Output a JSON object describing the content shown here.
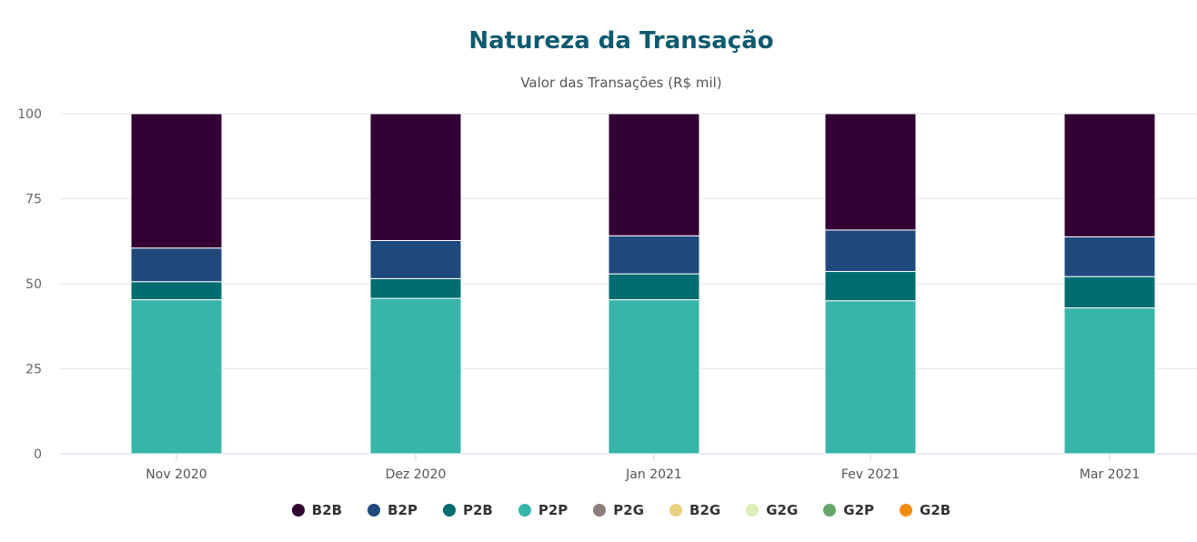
{
  "chart_data": {
    "type": "bar",
    "stacked": true,
    "title": "Natureza da Transação",
    "subtitle": "Valor das Transações (R$ mil)",
    "categories": [
      "Nov 2020",
      "Dez 2020",
      "Jan 2021",
      "Fev 2021",
      "Mar 2021"
    ],
    "ylim": [
      0,
      100
    ],
    "yticks": [
      "0",
      "25",
      "50",
      "75",
      "100"
    ],
    "grid": true,
    "legend_position": "bottom",
    "series": [
      {
        "name": "P2P",
        "color": "#38b5aa",
        "values": [
          45.3,
          45.7,
          45.3,
          45.0,
          42.9
        ]
      },
      {
        "name": "P2B",
        "color": "#026d70",
        "values": [
          5.3,
          5.8,
          7.6,
          8.6,
          9.2
        ]
      },
      {
        "name": "B2P",
        "color": "#1f497d",
        "values": [
          9.9,
          11.2,
          11.2,
          12.2,
          11.7
        ]
      },
      {
        "name": "B2B",
        "color": "#320033",
        "values": [
          39.5,
          37.3,
          35.9,
          34.2,
          36.2
        ]
      },
      {
        "name": "P2G",
        "color": "#8b7e7b",
        "values": [
          0,
          0,
          0,
          0,
          0
        ]
      },
      {
        "name": "B2G",
        "color": "#e8cf82",
        "values": [
          0,
          0,
          0,
          0,
          0
        ]
      },
      {
        "name": "G2G",
        "color": "#dcf0b6",
        "values": [
          0,
          0,
          0,
          0,
          0
        ]
      },
      {
        "name": "G2P",
        "color": "#66a56c",
        "values": [
          0,
          0,
          0,
          0,
          0
        ]
      },
      {
        "name": "G2B",
        "color": "#f28c0e",
        "values": [
          0,
          0,
          0,
          0,
          0
        ]
      }
    ],
    "legend_order": [
      "B2B",
      "B2P",
      "P2B",
      "P2P",
      "P2G",
      "B2G",
      "G2G",
      "G2P",
      "G2B"
    ]
  }
}
